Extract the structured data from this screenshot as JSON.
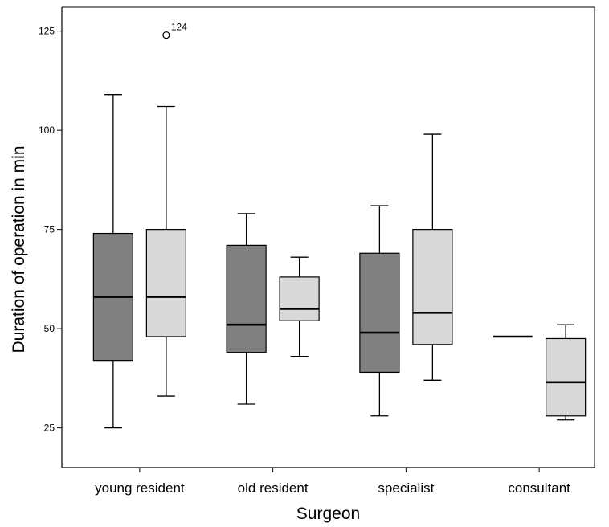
{
  "chart_data": {
    "type": "boxplot",
    "xlabel": "Surgeon",
    "ylabel": "Duration of operation in min",
    "categories": [
      "young resident",
      "old resident",
      "specialist",
      "consultant"
    ],
    "yticks": [
      25,
      50,
      75,
      100,
      125
    ],
    "ylim": [
      15,
      131
    ],
    "grid": false,
    "colors": {
      "series1": "#808080",
      "series2": "#d9d9d9"
    },
    "series": [
      {
        "boxes": [
          {
            "min": 25,
            "q1": 42,
            "median": 58,
            "q3": 74,
            "max": 109
          },
          {
            "min": 31,
            "q1": 44,
            "median": 51,
            "q3": 71,
            "max": 79
          },
          {
            "min": 28,
            "q1": 39,
            "median": 49,
            "q3": 69,
            "max": 81
          },
          {
            "min": 48,
            "q1": 48,
            "median": 48,
            "q3": 48,
            "max": 48
          }
        ]
      },
      {
        "boxes": [
          {
            "min": 33,
            "q1": 48,
            "median": 58,
            "q3": 75,
            "max": 106,
            "outliers": [
              {
                "value": 124,
                "label": "124"
              }
            ]
          },
          {
            "min": 43,
            "q1": 52,
            "median": 55,
            "q3": 63,
            "max": 68
          },
          {
            "min": 37,
            "q1": 46,
            "median": 54,
            "q3": 75,
            "max": 99
          },
          {
            "min": 27,
            "q1": 28,
            "median": 36.5,
            "q3": 47.5,
            "max": 51
          }
        ]
      }
    ]
  }
}
